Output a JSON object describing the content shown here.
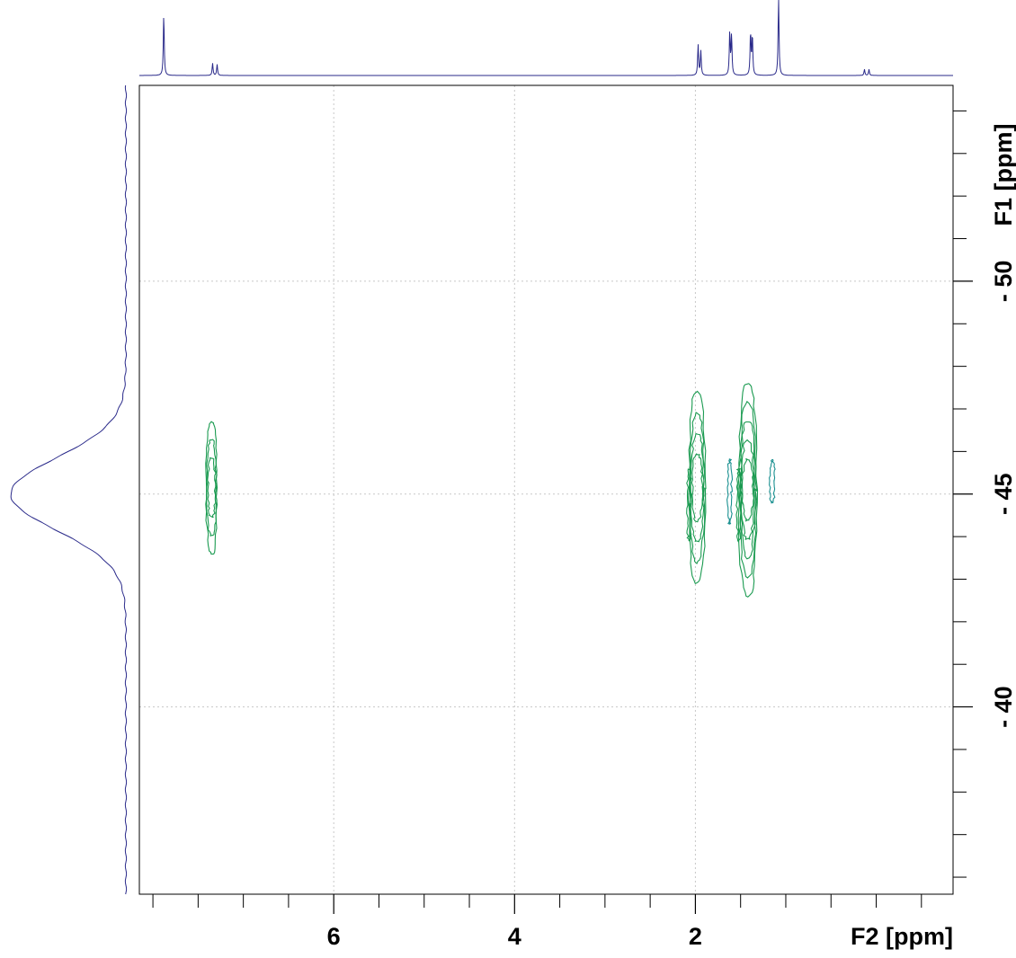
{
  "chart_data": {
    "type": "contour",
    "x_axis": {
      "label": "F2 [ppm]",
      "range": [
        8.15,
        -0.85
      ],
      "reversed": true,
      "major_ticks": [
        6,
        4,
        2
      ],
      "tick_labels": [
        "6",
        "4",
        "2"
      ],
      "minor_ticks": [
        8,
        7.5,
        7,
        6.5,
        5.5,
        5,
        4.5,
        3.5,
        3,
        2.5,
        1.5,
        1,
        0.5,
        0,
        -0.5
      ]
    },
    "y_axis": {
      "label": "F1 [ppm]",
      "range": [
        -54.6,
        -35.6
      ],
      "reversed": true,
      "major_ticks": [
        -50,
        -45,
        -40
      ],
      "tick_labels": [
        "- 50",
        "- 45",
        "- 40"
      ],
      "minor_ticks": [
        -54,
        -53,
        -52,
        -51,
        -49,
        -48,
        -47,
        -46,
        -44,
        -43,
        -42,
        -41,
        -39,
        -38,
        -37,
        -36
      ]
    },
    "grid": true,
    "contour_color": "#1a9a50",
    "projection_color": "#2a2a8a",
    "cross_peaks": [
      {
        "f2": 7.35,
        "f1": -45.0,
        "f1_span": [
          -46.7,
          -43.6
        ],
        "f2_width": 0.12,
        "levels": 3
      },
      {
        "f2": 1.98,
        "f1": -45.0,
        "f1_span": [
          -47.4,
          -42.9
        ],
        "f2_width": 0.18,
        "levels": 4
      },
      {
        "f2": 1.62,
        "f1": -45.2,
        "f1_span": [
          -45.8,
          -44.3
        ],
        "f2_width": 0.04,
        "levels": 1
      },
      {
        "f2": 1.42,
        "f1": -45.0,
        "f1_span": [
          -47.6,
          -42.6
        ],
        "f2_width": 0.2,
        "levels": 5
      },
      {
        "f2": 1.15,
        "f1": -45.3,
        "f1_span": [
          -45.8,
          -44.8
        ],
        "f2_width": 0.05,
        "levels": 1
      },
      {
        "f2": 2.07,
        "f1": -44.8,
        "f1_span": [
          -45.6,
          -43.9
        ],
        "f2_width": 0.04,
        "levels": 1
      },
      {
        "f2": 1.52,
        "f1": -44.9,
        "f1_span": [
          -45.6,
          -43.9
        ],
        "f2_width": 0.04,
        "levels": 1
      }
    ],
    "f2_projection_peaks": [
      {
        "ppm": 7.88,
        "height": 1.0
      },
      {
        "ppm": 7.34,
        "height": 0.2
      },
      {
        "ppm": 7.29,
        "height": 0.18
      },
      {
        "ppm": 1.97,
        "height": 0.5
      },
      {
        "ppm": 1.94,
        "height": 0.4
      },
      {
        "ppm": 1.62,
        "height": 0.7
      },
      {
        "ppm": 1.6,
        "height": 0.65
      },
      {
        "ppm": 1.39,
        "height": 0.7
      },
      {
        "ppm": 1.37,
        "height": 0.65
      },
      {
        "ppm": 1.08,
        "height": 1.3
      },
      {
        "ppm": 0.13,
        "height": 0.1
      },
      {
        "ppm": 0.08,
        "height": 0.1
      }
    ],
    "f1_projection_peak": {
      "ppm": -45.0,
      "width": 1.2
    }
  }
}
